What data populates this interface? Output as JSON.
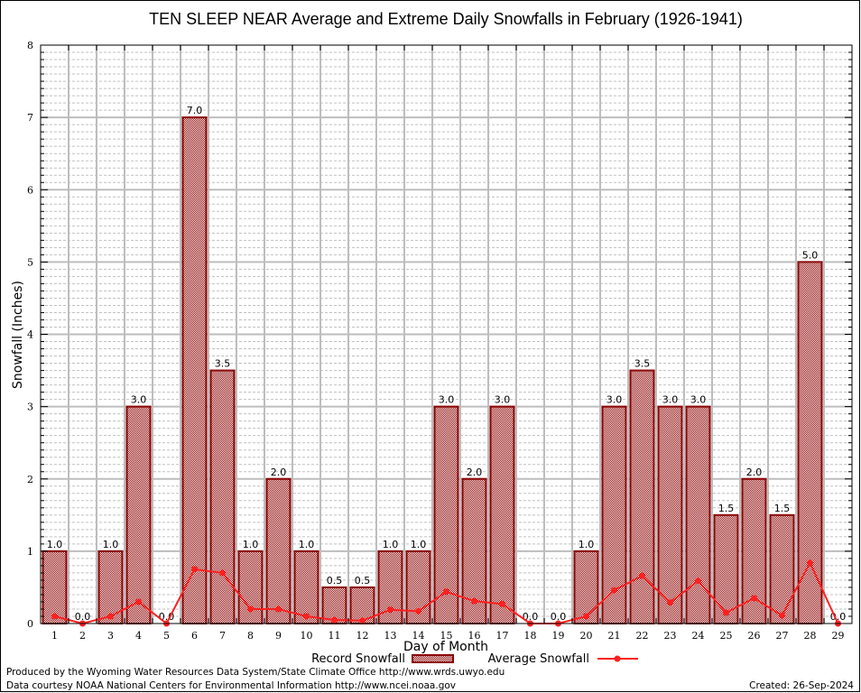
{
  "chart_data": {
    "type": "bar",
    "title": "TEN SLEEP NEAR Average and Extreme Daily Snowfalls in February (1926-1941)",
    "xlabel": "Day of Month",
    "ylabel": "Snowfall (Inches)",
    "ylim": [
      0,
      8
    ],
    "yticks": [
      "0",
      "1",
      "2",
      "3",
      "4",
      "5",
      "6",
      "7",
      "8"
    ],
    "grid": true,
    "legend_position": "bottom",
    "categories": [
      "1",
      "2",
      "3",
      "4",
      "5",
      "6",
      "7",
      "8",
      "9",
      "10",
      "11",
      "12",
      "13",
      "14",
      "15",
      "16",
      "17",
      "18",
      "19",
      "20",
      "21",
      "22",
      "23",
      "24",
      "25",
      "26",
      "27",
      "28",
      "29"
    ],
    "series": [
      {
        "name": "Record Snowfall",
        "type": "bar",
        "color": "#8b0000",
        "values": [
          1.0,
          0.0,
          1.0,
          3.0,
          0.0,
          7.0,
          3.5,
          1.0,
          2.0,
          1.0,
          0.5,
          0.5,
          1.0,
          1.0,
          3.0,
          2.0,
          3.0,
          0.0,
          0.0,
          1.0,
          3.0,
          3.5,
          3.0,
          3.0,
          1.5,
          2.0,
          1.5,
          5.0,
          0.0
        ],
        "labels": [
          "1.0",
          "0.0",
          "1.0",
          "3.0",
          "0.0",
          "7.0",
          "3.5",
          "1.0",
          "2.0",
          "1.0",
          "0.5",
          "0.5",
          "1.0",
          "1.0",
          "3.0",
          "2.0",
          "3.0",
          "0.0",
          "0.0",
          "1.0",
          "3.0",
          "3.5",
          "3.0",
          "3.0",
          "1.5",
          "2.0",
          "1.5",
          "5.0",
          "0.0"
        ]
      },
      {
        "name": "Average Snowfall",
        "type": "line",
        "color": "#ff2020",
        "values": [
          0.1,
          0.0,
          0.1,
          0.3,
          0.0,
          0.75,
          0.7,
          0.2,
          0.2,
          0.1,
          0.05,
          0.04,
          0.19,
          0.17,
          0.44,
          0.31,
          0.27,
          0.0,
          0.0,
          0.1,
          0.46,
          0.66,
          0.29,
          0.59,
          0.15,
          0.35,
          0.11,
          0.84,
          0.0
        ]
      }
    ]
  },
  "footer": {
    "produced_by": "Produced by the Wyoming Water Resources Data System/State Climate Office http://www.wrds.uwyo.edu",
    "data_courtesy": "Data courtesy NOAA National Centers for Environmental Information http://www.ncei.noaa.gov",
    "created": "Created: 26-Sep-2024"
  }
}
